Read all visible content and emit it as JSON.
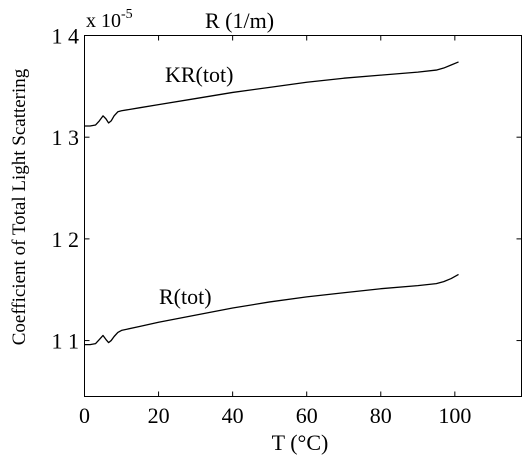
{
  "chart_data": {
    "type": "line",
    "title": "R (1/m)",
    "multiplier": "x 10",
    "multiplier_exp": "-5",
    "xlabel": "T (°C)",
    "ylabel": "Coefficient of Total Light Scattering",
    "xlim": [
      0,
      118
    ],
    "ylim": [
      1.045,
      1.4
    ],
    "x_ticks": [
      0,
      20,
      40,
      60,
      80,
      100
    ],
    "x_tick_labels": [
      "0",
      "20",
      "40",
      "60",
      "80",
      "100"
    ],
    "y_ticks": [
      1.1,
      1.2,
      1.3,
      1.4
    ],
    "y_tick_labels": [
      "1 1",
      "1 2",
      "1 3",
      "1 4"
    ],
    "grid": false,
    "series": [
      {
        "name": "KR(tot)",
        "x": [
          0,
          1.5,
          3,
          4,
          5,
          5.8,
          6.5,
          7.2,
          8,
          9,
          10,
          15,
          20,
          30,
          40,
          50,
          60,
          70,
          80,
          90,
          95,
          97,
          99,
          101
        ],
        "y": [
          1.311,
          1.311,
          1.312,
          1.316,
          1.321,
          1.318,
          1.314,
          1.316,
          1.321,
          1.325,
          1.326,
          1.329,
          1.332,
          1.338,
          1.344,
          1.349,
          1.354,
          1.358,
          1.361,
          1.364,
          1.366,
          1.368,
          1.371,
          1.374
        ]
      },
      {
        "name": "R(tot)",
        "x": [
          0,
          1.5,
          3,
          4,
          5,
          5.8,
          6.5,
          7.2,
          8,
          9,
          10,
          15,
          20,
          30,
          40,
          50,
          60,
          70,
          80,
          90,
          95,
          97,
          99,
          101
        ],
        "y": [
          1.096,
          1.096,
          1.097,
          1.101,
          1.105,
          1.101,
          1.098,
          1.1,
          1.104,
          1.108,
          1.11,
          1.114,
          1.118,
          1.125,
          1.132,
          1.138,
          1.143,
          1.147,
          1.151,
          1.154,
          1.156,
          1.158,
          1.161,
          1.165
        ]
      }
    ]
  }
}
